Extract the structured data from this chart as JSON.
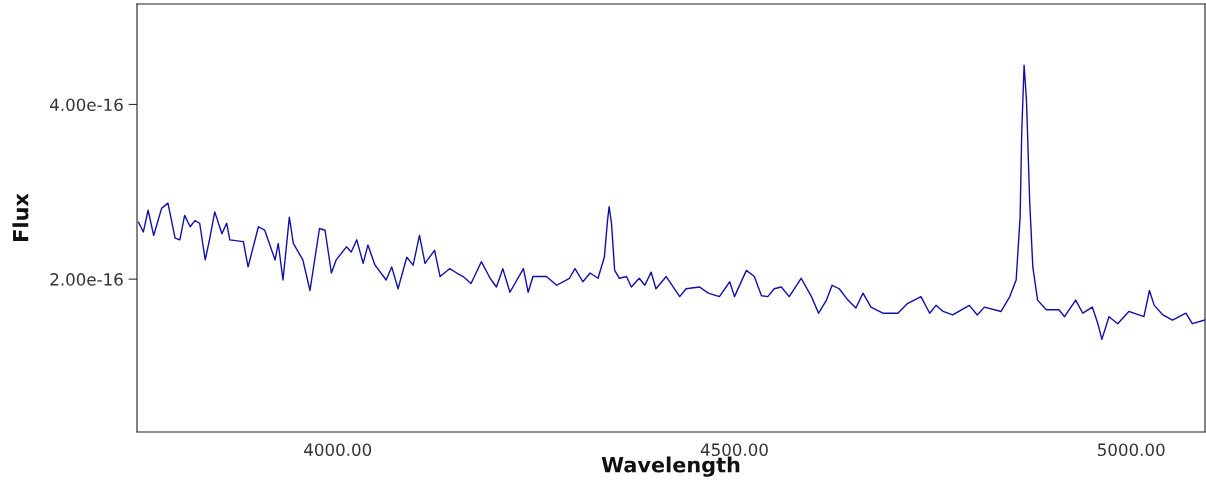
{
  "chart_data": {
    "type": "line",
    "xlabel": "Wavelength",
    "ylabel": "Flux",
    "xlim": [
      3747,
      5093
    ],
    "ylim": [
      2.5e-17,
      5.15e-16
    ],
    "xticks": [
      {
        "value": 4000,
        "label": "4000.00"
      },
      {
        "value": 4500,
        "label": "4500.00"
      },
      {
        "value": 5000,
        "label": "5000.00"
      }
    ],
    "yticks": [
      {
        "value": 2e-16,
        "label": "2.00e-16"
      },
      {
        "value": 4e-16,
        "label": "4.00e-16"
      }
    ],
    "grid": false,
    "legend": false,
    "marker": "none",
    "line_style": "solid",
    "series": [
      {
        "color": "#1010a8",
        "x": [
          3749,
          3755,
          3761,
          3768,
          3778,
          3786,
          3795,
          3801,
          3807,
          3814,
          3820,
          3826,
          3833,
          3839,
          3845,
          3854,
          3860,
          3864,
          3881,
          3887,
          3900,
          3908,
          3921,
          3925,
          3931,
          3939,
          3944,
          3956,
          3965,
          3977,
          3984,
          3992,
          3998,
          4011,
          4017,
          4024,
          4032,
          4038,
          4047,
          4061,
          4068,
          4076,
          4087,
          4095,
          4103,
          4110,
          4122,
          4129,
          4141,
          4150,
          4158,
          4168,
          4181,
          4192,
          4200,
          4208,
          4217,
          4234,
          4240,
          4246,
          4263,
          4276,
          4292,
          4299,
          4309,
          4318,
          4328,
          4336,
          4340,
          4342,
          4345,
          4349,
          4355,
          4364,
          4370,
          4380,
          4387,
          4395,
          4401,
          4414,
          4431,
          4439,
          4456,
          4467,
          4481,
          4494,
          4500,
          4515,
          4525,
          4534,
          4542,
          4550,
          4559,
          4569,
          4584,
          4597,
          4606,
          4616,
          4623,
          4632,
          4643,
          4653,
          4662,
          4672,
          4687,
          4706,
          4718,
          4735,
          4746,
          4754,
          4763,
          4775,
          4796,
          4806,
          4815,
          4836,
          4847,
          4855,
          4860,
          4862,
          4865,
          4868,
          4872,
          4876,
          4882,
          4893,
          4909,
          4916,
          4930,
          4939,
          4951,
          4958,
          4963,
          4972,
          4983,
          4997,
          5016,
          5023,
          5029,
          5040,
          5052,
          5069,
          5077,
          5092
        ],
        "values": [
          2.65e-16,
          2.54e-16,
          2.79e-16,
          2.5e-16,
          2.81e-16,
          2.87e-16,
          2.47e-16,
          2.45e-16,
          2.73e-16,
          2.6e-16,
          2.67e-16,
          2.64e-16,
          2.22e-16,
          2.48e-16,
          2.77e-16,
          2.52e-16,
          2.64e-16,
          2.45e-16,
          2.43e-16,
          2.14e-16,
          2.6e-16,
          2.56e-16,
          2.22e-16,
          2.41e-16,
          1.99e-16,
          2.71e-16,
          2.41e-16,
          2.22e-16,
          1.87e-16,
          2.58e-16,
          2.56e-16,
          2.07e-16,
          2.22e-16,
          2.37e-16,
          2.31e-16,
          2.45e-16,
          2.18e-16,
          2.39e-16,
          2.16e-16,
          1.99e-16,
          2.14e-16,
          1.89e-16,
          2.25e-16,
          2.16e-16,
          2.5e-16,
          2.18e-16,
          2.33e-16,
          2.03e-16,
          2.12e-16,
          2.07e-16,
          2.03e-16,
          1.95e-16,
          2.2e-16,
          2.01e-16,
          1.91e-16,
          2.12e-16,
          1.85e-16,
          2.12e-16,
          1.85e-16,
          2.03e-16,
          2.03e-16,
          1.93e-16,
          2.01e-16,
          2.12e-16,
          1.97e-16,
          2.07e-16,
          2.01e-16,
          2.25e-16,
          2.67e-16,
          2.83e-16,
          2.64e-16,
          2.1e-16,
          2.01e-16,
          2.03e-16,
          1.91e-16,
          2.01e-16,
          1.93e-16,
          2.08e-16,
          1.89e-16,
          2.03e-16,
          1.8e-16,
          1.89e-16,
          1.91e-16,
          1.84e-16,
          1.8e-16,
          1.97e-16,
          1.8e-16,
          2.1e-16,
          2.03e-16,
          1.81e-16,
          1.8e-16,
          1.89e-16,
          1.91e-16,
          1.8e-16,
          2.01e-16,
          1.8e-16,
          1.61e-16,
          1.76e-16,
          1.93e-16,
          1.89e-16,
          1.76e-16,
          1.67e-16,
          1.84e-16,
          1.68e-16,
          1.61e-16,
          1.61e-16,
          1.72e-16,
          1.8e-16,
          1.61e-16,
          1.7e-16,
          1.63e-16,
          1.59e-16,
          1.7e-16,
          1.59e-16,
          1.68e-16,
          1.63e-16,
          1.8e-16,
          1.99e-16,
          2.71e-16,
          3.67e-16,
          4.45e-16,
          4.05e-16,
          2.9e-16,
          2.14e-16,
          1.76e-16,
          1.65e-16,
          1.65e-16,
          1.57e-16,
          1.76e-16,
          1.61e-16,
          1.68e-16,
          1.49e-16,
          1.31e-16,
          1.57e-16,
          1.49e-16,
          1.63e-16,
          1.57e-16,
          1.87e-16,
          1.7e-16,
          1.59e-16,
          1.53e-16,
          1.61e-16,
          1.49e-16,
          1.53e-16
        ]
      }
    ]
  }
}
